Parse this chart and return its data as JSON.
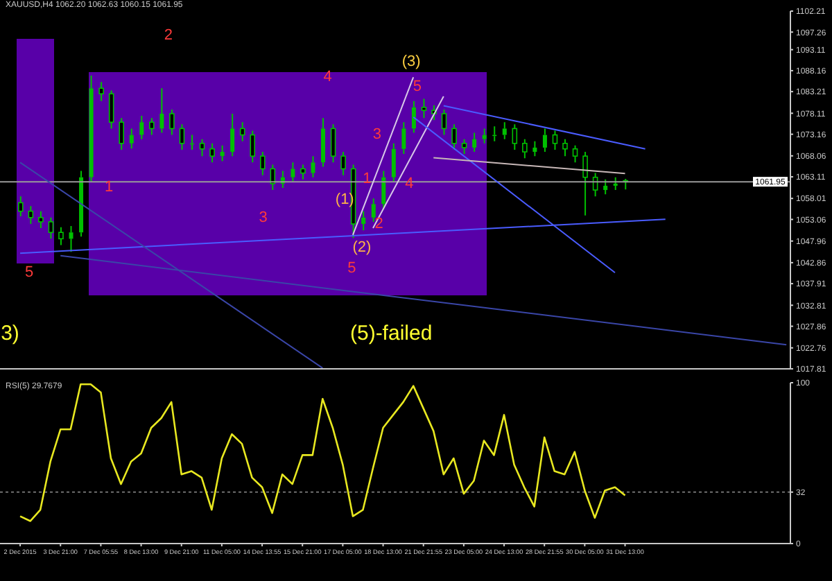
{
  "chart_data": [
    {
      "type": "candlestick",
      "title": "XAUUSD,H4 1062.20 1062.63 1060.15 1061.95",
      "color": "#00c000",
      "categories": [
        null,
        null,
        null,
        null,
        null,
        null,
        null,
        null,
        null,
        null,
        null,
        null,
        null,
        null,
        null,
        null,
        null,
        null,
        null,
        null,
        null,
        null,
        null,
        null,
        null,
        null,
        null,
        null,
        null,
        null,
        null,
        null,
        null,
        null,
        null,
        null,
        null,
        null,
        null,
        null,
        null,
        null,
        null,
        null,
        null,
        null,
        null,
        null,
        null,
        null,
        null,
        null,
        null,
        null,
        null,
        null,
        null,
        null,
        null,
        null,
        null,
        null,
        null,
        null,
        null,
        null,
        null,
        null,
        null,
        null,
        null,
        null,
        null,
        null,
        null,
        null,
        null
      ],
      "ohlc": [
        [
          1057,
          1058.5,
          1053.8,
          1055
        ],
        [
          1055,
          1056.2,
          1052,
          1053.5
        ],
        [
          1053.5,
          1055,
          1051,
          1052.5
        ],
        [
          1052.5,
          1053.5,
          1048.5,
          1050
        ],
        [
          1050,
          1051.2,
          1047,
          1048.5
        ],
        [
          1048.5,
          1051.5,
          1045.4,
          1050
        ],
        [
          1050,
          1064.5,
          1049,
          1063
        ],
        [
          1063,
          1087,
          1062,
          1084
        ],
        [
          1084,
          1085.5,
          1081,
          1082.7
        ],
        [
          1082.7,
          1083.5,
          1074.5,
          1076
        ],
        [
          1076,
          1077,
          1069.5,
          1071
        ],
        [
          1071,
          1074.5,
          1069.8,
          1073
        ],
        [
          1073,
          1077.5,
          1072,
          1076
        ],
        [
          1076,
          1077,
          1073,
          1074.5
        ],
        [
          1074.5,
          1084,
          1073.5,
          1078
        ],
        [
          1078,
          1079,
          1073,
          1074.5
        ],
        [
          1074.5,
          1075.5,
          1069.5,
          1071
        ],
        [
          1071,
          1073,
          1069.5,
          1071
        ],
        [
          1071,
          1072,
          1068,
          1069.7
        ],
        [
          1069.7,
          1071,
          1066.5,
          1068
        ],
        [
          1068,
          1070.5,
          1066.8,
          1069
        ],
        [
          1069,
          1078,
          1068,
          1074.5
        ],
        [
          1074.5,
          1076,
          1071.5,
          1073
        ],
        [
          1073,
          1074,
          1066.5,
          1068
        ],
        [
          1068,
          1069,
          1063.5,
          1065
        ],
        [
          1065,
          1066,
          1060,
          1061.5
        ],
        [
          1061.5,
          1064.5,
          1060.5,
          1063
        ],
        [
          1063,
          1066.5,
          1062,
          1065
        ],
        [
          1065,
          1066,
          1062.5,
          1064
        ],
        [
          1064,
          1068,
          1063,
          1066.5
        ],
        [
          1066.5,
          1077,
          1065.5,
          1074.5
        ],
        [
          1074.5,
          1075.5,
          1066.5,
          1068
        ],
        [
          1068,
          1069,
          1063.5,
          1065
        ],
        [
          1065,
          1066,
          1048.7,
          1052
        ],
        [
          1052,
          1055,
          1050.5,
          1053.5
        ],
        [
          1053.5,
          1058,
          1052.5,
          1056.7
        ],
        [
          1056.7,
          1064.5,
          1055.5,
          1063
        ],
        [
          1063,
          1071,
          1062,
          1069.7
        ],
        [
          1069.7,
          1076,
          1068.5,
          1074.5
        ],
        [
          1074.5,
          1081,
          1073.5,
          1079.5
        ],
        [
          1079.5,
          1081.5,
          1077,
          1078.8
        ],
        [
          1078.8,
          1080,
          1076.5,
          1078
        ],
        [
          1078,
          1079,
          1073,
          1074.5
        ],
        [
          1074.5,
          1075.5,
          1069.5,
          1071
        ],
        [
          1071,
          1072,
          1068.5,
          1070
        ],
        [
          1070,
          1073.5,
          1069,
          1072
        ],
        [
          1072,
          1074.5,
          1071,
          1073
        ],
        [
          1073,
          1075,
          1071.5,
          1073
        ],
        [
          1073,
          1076,
          1072,
          1074.5
        ],
        [
          1074.5,
          1075.5,
          1069.5,
          1071
        ],
        [
          1071,
          1072,
          1067.5,
          1069
        ],
        [
          1069,
          1071.5,
          1068,
          1070
        ],
        [
          1070,
          1074.5,
          1069,
          1073
        ],
        [
          1073,
          1074,
          1069.5,
          1071
        ],
        [
          1071,
          1072,
          1068,
          1069.7
        ],
        [
          1069.7,
          1070.5,
          1066.5,
          1068
        ],
        [
          1068,
          1069,
          1054,
          1063
        ],
        [
          1063,
          1064,
          1058.5,
          1060
        ],
        [
          1060,
          1062.5,
          1059,
          1061
        ],
        [
          1061,
          1063,
          1060,
          1061.5
        ],
        [
          1062.2,
          1062.63,
          1060.15,
          1061.95
        ],
        null,
        null,
        null,
        null,
        null,
        null,
        null,
        null,
        null,
        null,
        null,
        null,
        null,
        null,
        null,
        null
      ],
      "series": [
        {
          "type": "line",
          "color": "#4a5cff",
          "values": [
            1045.1,
            null,
            null,
            null,
            null,
            null,
            null,
            null,
            null,
            null,
            null,
            null,
            null,
            null,
            null,
            null,
            null,
            null,
            null,
            null,
            null,
            null,
            null,
            null,
            null,
            null,
            null,
            null,
            null,
            null,
            null,
            null,
            null,
            null,
            null,
            null,
            null,
            null,
            null,
            null,
            null,
            null,
            null,
            null,
            null,
            null,
            null,
            null,
            null,
            null,
            null,
            null,
            null,
            null,
            null,
            null,
            null,
            null,
            null,
            null,
            null,
            null,
            null,
            null,
            1053.1,
            null,
            null,
            null,
            null,
            null,
            null,
            null,
            null,
            null,
            null,
            null,
            null
          ]
        },
        {
          "type": "line",
          "color": "#3a46a8",
          "values": [
            null,
            null,
            null,
            null,
            1044.5,
            null,
            null,
            null,
            null,
            null,
            null,
            null,
            null,
            null,
            null,
            null,
            null,
            null,
            null,
            null,
            null,
            null,
            null,
            null,
            null,
            null,
            null,
            null,
            null,
            null,
            null,
            null,
            null,
            null,
            null,
            null,
            null,
            null,
            null,
            null,
            null,
            null,
            null,
            null,
            null,
            null,
            null,
            null,
            null,
            null,
            null,
            null,
            null,
            null,
            null,
            null,
            null,
            null,
            null,
            null,
            null,
            null,
            null,
            null,
            null,
            null,
            null,
            null,
            null,
            null,
            null,
            null,
            null,
            null,
            null,
            null,
            1023.5
          ]
        },
        {
          "type": "line",
          "color": "#3a46a8",
          "values": [
            1066.5,
            null,
            null,
            null,
            null,
            null,
            null,
            null,
            null,
            null,
            null,
            null,
            null,
            null,
            null,
            null,
            null,
            null,
            null,
            null,
            null,
            null,
            null,
            null,
            null,
            null,
            null,
            null,
            null,
            null,
            1018,
            null,
            null,
            null,
            null,
            null,
            null,
            null,
            null,
            null,
            null,
            null,
            null,
            null,
            null,
            null,
            null,
            null,
            null,
            null,
            null,
            null,
            null,
            null,
            null,
            null,
            null,
            null,
            null,
            null,
            null,
            null,
            null,
            null,
            null,
            null,
            null,
            null,
            null,
            null,
            null,
            null,
            null,
            null,
            null,
            null,
            null
          ]
        },
        {
          "type": "line",
          "color": "#d8c8e8",
          "values": [
            null,
            null,
            null,
            null,
            null,
            null,
            null,
            null,
            null,
            null,
            null,
            null,
            null,
            null,
            null,
            null,
            null,
            null,
            null,
            null,
            null,
            null,
            null,
            null,
            null,
            null,
            null,
            null,
            null,
            null,
            null,
            null,
            null,
            1049.4,
            null,
            null,
            null,
            null,
            null,
            1086.6,
            null,
            null,
            null,
            null,
            null,
            null,
            null,
            null,
            null,
            null,
            null,
            null,
            null,
            null,
            null,
            null,
            null,
            null,
            null,
            null,
            null,
            null,
            null,
            null,
            null,
            null,
            null,
            null,
            null,
            null,
            null,
            null,
            null,
            null,
            null,
            null,
            null
          ]
        },
        {
          "type": "line",
          "color": "#d8c8e8",
          "values": [
            null,
            null,
            null,
            null,
            null,
            null,
            null,
            null,
            null,
            null,
            null,
            null,
            null,
            null,
            null,
            null,
            null,
            null,
            null,
            null,
            null,
            null,
            null,
            null,
            null,
            null,
            null,
            null,
            null,
            null,
            null,
            null,
            null,
            null,
            null,
            1051,
            null,
            null,
            null,
            null,
            null,
            null,
            1082.1,
            null,
            null,
            null,
            null,
            null,
            null,
            null,
            null,
            null,
            null,
            null,
            null,
            null,
            null,
            null,
            null,
            null,
            null,
            null,
            null,
            null,
            null,
            null,
            null,
            null,
            null,
            null,
            null,
            null,
            null,
            null,
            null,
            null,
            null
          ]
        },
        {
          "type": "line",
          "color": "#4a5cff",
          "values": [
            null,
            null,
            null,
            null,
            null,
            null,
            null,
            null,
            null,
            null,
            null,
            null,
            null,
            null,
            null,
            null,
            null,
            null,
            null,
            null,
            null,
            null,
            null,
            null,
            null,
            null,
            null,
            null,
            null,
            null,
            null,
            null,
            null,
            null,
            null,
            null,
            null,
            null,
            null,
            null,
            null,
            null,
            1079.9,
            null,
            null,
            null,
            null,
            null,
            null,
            null,
            null,
            null,
            null,
            null,
            null,
            null,
            null,
            null,
            null,
            null,
            null,
            null,
            1069.7,
            null,
            null,
            null,
            null,
            null,
            null,
            null,
            null,
            null,
            null,
            null,
            null,
            null,
            null
          ]
        },
        {
          "type": "line",
          "color": "#4a5cff",
          "values": [
            null,
            null,
            null,
            null,
            null,
            null,
            null,
            null,
            null,
            null,
            null,
            null,
            null,
            null,
            null,
            null,
            null,
            null,
            null,
            null,
            null,
            null,
            null,
            null,
            null,
            null,
            null,
            null,
            null,
            null,
            null,
            null,
            null,
            null,
            null,
            null,
            null,
            null,
            null,
            1077.2,
            null,
            null,
            null,
            null,
            null,
            null,
            null,
            null,
            null,
            null,
            null,
            null,
            null,
            null,
            null,
            null,
            null,
            null,
            null,
            1040.5,
            null,
            null,
            null,
            null,
            null,
            null,
            null,
            null,
            null,
            null,
            null,
            null,
            null,
            null,
            null,
            null,
            null
          ]
        },
        {
          "type": "line",
          "color": "#c8b8b8",
          "values": [
            null,
            null,
            null,
            null,
            null,
            null,
            null,
            null,
            null,
            null,
            null,
            null,
            null,
            null,
            null,
            null,
            null,
            null,
            null,
            null,
            null,
            null,
            null,
            null,
            null,
            null,
            null,
            null,
            null,
            null,
            null,
            null,
            null,
            null,
            null,
            null,
            null,
            null,
            null,
            null,
            null,
            1067.6,
            null,
            null,
            null,
            null,
            null,
            null,
            null,
            null,
            null,
            null,
            null,
            null,
            null,
            null,
            null,
            null,
            null,
            null,
            1063.9,
            null,
            null,
            null,
            null,
            null,
            null,
            null,
            null,
            null,
            null,
            null,
            null,
            null,
            null,
            null,
            null
          ]
        }
      ],
      "ref_lines": [
        {
          "axis": "y",
          "value": 1061.95,
          "label": "1061.95",
          "color": "#9a9a9a"
        }
      ],
      "annotations": [
        "2",
        "4",
        "1",
        "3",
        "5",
        "(1)",
        "(2)",
        "(3)",
        "5",
        "3",
        "1",
        "2",
        "4",
        "5",
        "3)",
        "(5)-failed"
      ],
      "ylim": [
        1017.81,
        1102.21
      ],
      "yticks": [
        1017.81,
        1022.76,
        1027.86,
        1032.81,
        1037.91,
        1042.86,
        1047.96,
        1053.06,
        1058.01,
        1063.11,
        1068.06,
        1073.16,
        1078.11,
        1083.21,
        1088.16,
        1093.11,
        1097.26,
        1102.21
      ],
      "tick_labels": "y"
    },
    {
      "type": "line",
      "title": "RSI(5) 29.7679",
      "color": "#e8e820",
      "categories": [
        "2 Dec 2015",
        null,
        null,
        null,
        "3 Dec 21:00",
        null,
        null,
        null,
        "7 Dec 05:55",
        null,
        null,
        null,
        "8 Dec 13:00",
        null,
        null,
        null,
        "9 Dec 21:00",
        null,
        null,
        null,
        "11 Dec 05:00",
        null,
        null,
        null,
        "14 Dec 13:55",
        null,
        null,
        null,
        "15 Dec 21:00",
        null,
        null,
        null,
        "17 Dec 05:00",
        null,
        null,
        null,
        "18 Dec 13:00",
        null,
        null,
        null,
        "21 Dec 21:55",
        null,
        null,
        null,
        "23 Dec 05:00",
        null,
        null,
        null,
        "24 Dec 13:00",
        null,
        null,
        null,
        "28 Dec 21:55",
        null,
        null,
        null,
        "30 Dec 05:00",
        null,
        null,
        null,
        "31 Dec 13:00",
        null,
        null,
        null,
        null,
        null,
        null,
        null,
        null,
        null,
        null,
        null,
        null,
        null,
        null,
        null,
        null
      ],
      "values": [
        17,
        14,
        21,
        51,
        71,
        71,
        99,
        99,
        94,
        53,
        37,
        51,
        56,
        72,
        78,
        88,
        43,
        45,
        41,
        21,
        53,
        68,
        62,
        41,
        35,
        19,
        43,
        37,
        55,
        55,
        90,
        72,
        49,
        17,
        21,
        47,
        72,
        80,
        88,
        98,
        84,
        70,
        43,
        53,
        31,
        39,
        64,
        55,
        80,
        49,
        35,
        23,
        66,
        45,
        43,
        57,
        33,
        16,
        33,
        35,
        30,
        null,
        null,
        null,
        null,
        null,
        null,
        null,
        null,
        null,
        null,
        null,
        null,
        null,
        null,
        null,
        null
      ],
      "ref_lines": [
        {
          "axis": "y",
          "value": 32,
          "color": "#707070",
          "line_style": "dotted"
        }
      ],
      "ylim": [
        0,
        100
      ],
      "yticks": [
        0,
        32,
        100
      ]
    }
  ]
}
